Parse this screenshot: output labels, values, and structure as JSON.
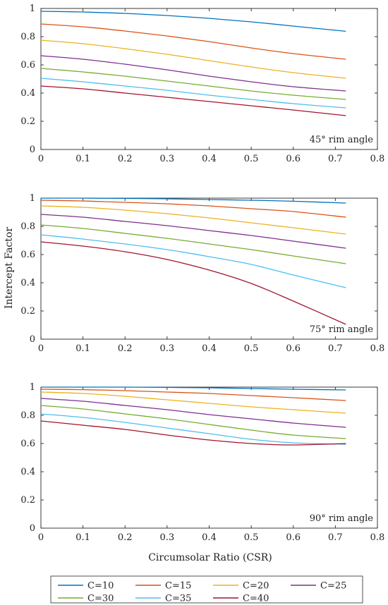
{
  "chart_data": [
    {
      "type": "line",
      "annotation": "45° rim angle",
      "xlabel": "",
      "ylabel": "",
      "xlim": [
        0,
        0.8
      ],
      "ylim": [
        0,
        1
      ],
      "xticks": [
        "0",
        "0.1",
        "0.2",
        "0.3",
        "0.4",
        "0.5",
        "0.6",
        "0.7",
        "0.8"
      ],
      "yticks": [
        "0",
        "0.2",
        "0.4",
        "0.6",
        "0.8",
        "1"
      ],
      "x": [
        0,
        0.1,
        0.2,
        0.3,
        0.4,
        0.5,
        0.6,
        0.725
      ],
      "series": [
        {
          "name": "C=10",
          "values": [
            0.98,
            0.975,
            0.965,
            0.95,
            0.93,
            0.905,
            0.875,
            0.838
          ]
        },
        {
          "name": "C=15",
          "values": [
            0.89,
            0.87,
            0.84,
            0.805,
            0.765,
            0.72,
            0.68,
            0.64
          ]
        },
        {
          "name": "C=20",
          "values": [
            0.775,
            0.75,
            0.715,
            0.675,
            0.63,
            0.585,
            0.545,
            0.505
          ]
        },
        {
          "name": "C=25",
          "values": [
            0.665,
            0.64,
            0.605,
            0.565,
            0.52,
            0.48,
            0.445,
            0.415
          ]
        },
        {
          "name": "C=30",
          "values": [
            0.575,
            0.55,
            0.52,
            0.485,
            0.45,
            0.415,
            0.385,
            0.355
          ]
        },
        {
          "name": "C=35",
          "values": [
            0.505,
            0.48,
            0.45,
            0.42,
            0.385,
            0.355,
            0.325,
            0.295
          ]
        },
        {
          "name": "C=40",
          "values": [
            0.45,
            0.43,
            0.4,
            0.37,
            0.34,
            0.31,
            0.28,
            0.24
          ]
        }
      ]
    },
    {
      "type": "line",
      "annotation": "75° rim angle",
      "xlabel": "",
      "ylabel": "Intercept Factor",
      "xlim": [
        0,
        0.8
      ],
      "ylim": [
        0,
        1
      ],
      "xticks": [
        "0",
        "0.1",
        "0.2",
        "0.3",
        "0.4",
        "0.5",
        "0.6",
        "0.7",
        "0.8"
      ],
      "yticks": [
        "0",
        "0.2",
        "0.4",
        "0.6",
        "0.8",
        "1"
      ],
      "x": [
        0,
        0.1,
        0.2,
        0.3,
        0.4,
        0.5,
        0.6,
        0.725
      ],
      "series": [
        {
          "name": "C=10",
          "values": [
            1.0,
            1.0,
            0.998,
            0.995,
            0.99,
            0.985,
            0.978,
            0.965
          ]
        },
        {
          "name": "C=15",
          "values": [
            0.985,
            0.98,
            0.97,
            0.96,
            0.945,
            0.925,
            0.905,
            0.865
          ]
        },
        {
          "name": "C=20",
          "values": [
            0.945,
            0.935,
            0.915,
            0.89,
            0.86,
            0.825,
            0.79,
            0.745
          ]
        },
        {
          "name": "C=25",
          "values": [
            0.885,
            0.865,
            0.835,
            0.805,
            0.77,
            0.735,
            0.695,
            0.645
          ]
        },
        {
          "name": "C=30",
          "values": [
            0.81,
            0.785,
            0.75,
            0.715,
            0.675,
            0.635,
            0.59,
            0.535
          ]
        },
        {
          "name": "C=35",
          "values": [
            0.74,
            0.71,
            0.675,
            0.635,
            0.585,
            0.53,
            0.455,
            0.365
          ]
        },
        {
          "name": "C=40",
          "values": [
            0.69,
            0.66,
            0.62,
            0.565,
            0.49,
            0.395,
            0.27,
            0.105
          ]
        }
      ]
    },
    {
      "type": "line",
      "annotation": "90° rim angle",
      "xlabel": "Circumsolar Ratio (CSR)",
      "ylabel": "",
      "xlim": [
        0,
        0.8
      ],
      "ylim": [
        0,
        1
      ],
      "xticks": [
        "0",
        "0.1",
        "0.2",
        "0.3",
        "0.4",
        "0.5",
        "0.6",
        "0.7",
        "0.8"
      ],
      "yticks": [
        "0",
        "0.2",
        "0.4",
        "0.6",
        "0.8",
        "1"
      ],
      "x": [
        0,
        0.1,
        0.2,
        0.3,
        0.4,
        0.5,
        0.6,
        0.725
      ],
      "series": [
        {
          "name": "C=10",
          "values": [
            1.0,
            1.0,
            1.0,
            0.998,
            0.995,
            0.99,
            0.985,
            0.98
          ]
        },
        {
          "name": "C=15",
          "values": [
            0.985,
            0.982,
            0.975,
            0.965,
            0.955,
            0.94,
            0.925,
            0.905
          ]
        },
        {
          "name": "C=20",
          "values": [
            0.965,
            0.955,
            0.935,
            0.91,
            0.885,
            0.86,
            0.84,
            0.815
          ]
        },
        {
          "name": "C=25",
          "values": [
            0.92,
            0.9,
            0.87,
            0.84,
            0.805,
            0.775,
            0.745,
            0.715
          ]
        },
        {
          "name": "C=30",
          "values": [
            0.87,
            0.845,
            0.81,
            0.775,
            0.735,
            0.695,
            0.66,
            0.635
          ]
        },
        {
          "name": "C=35",
          "values": [
            0.81,
            0.785,
            0.75,
            0.71,
            0.67,
            0.63,
            0.605,
            0.595
          ]
        },
        {
          "name": "C=40",
          "values": [
            0.76,
            0.73,
            0.7,
            0.66,
            0.625,
            0.6,
            0.59,
            0.6
          ]
        }
      ]
    }
  ],
  "legend": {
    "placement": "bottom",
    "items": [
      {
        "label": "C=10",
        "color": "#0072BD"
      },
      {
        "label": "C=15",
        "color": "#D95319"
      },
      {
        "label": "C=20",
        "color": "#EDB120"
      },
      {
        "label": "C=25",
        "color": "#7E2F8E"
      },
      {
        "label": "C=30",
        "color": "#77AC30"
      },
      {
        "label": "C=35",
        "color": "#4DBEEE"
      },
      {
        "label": "C=40",
        "color": "#A2142F"
      }
    ]
  }
}
